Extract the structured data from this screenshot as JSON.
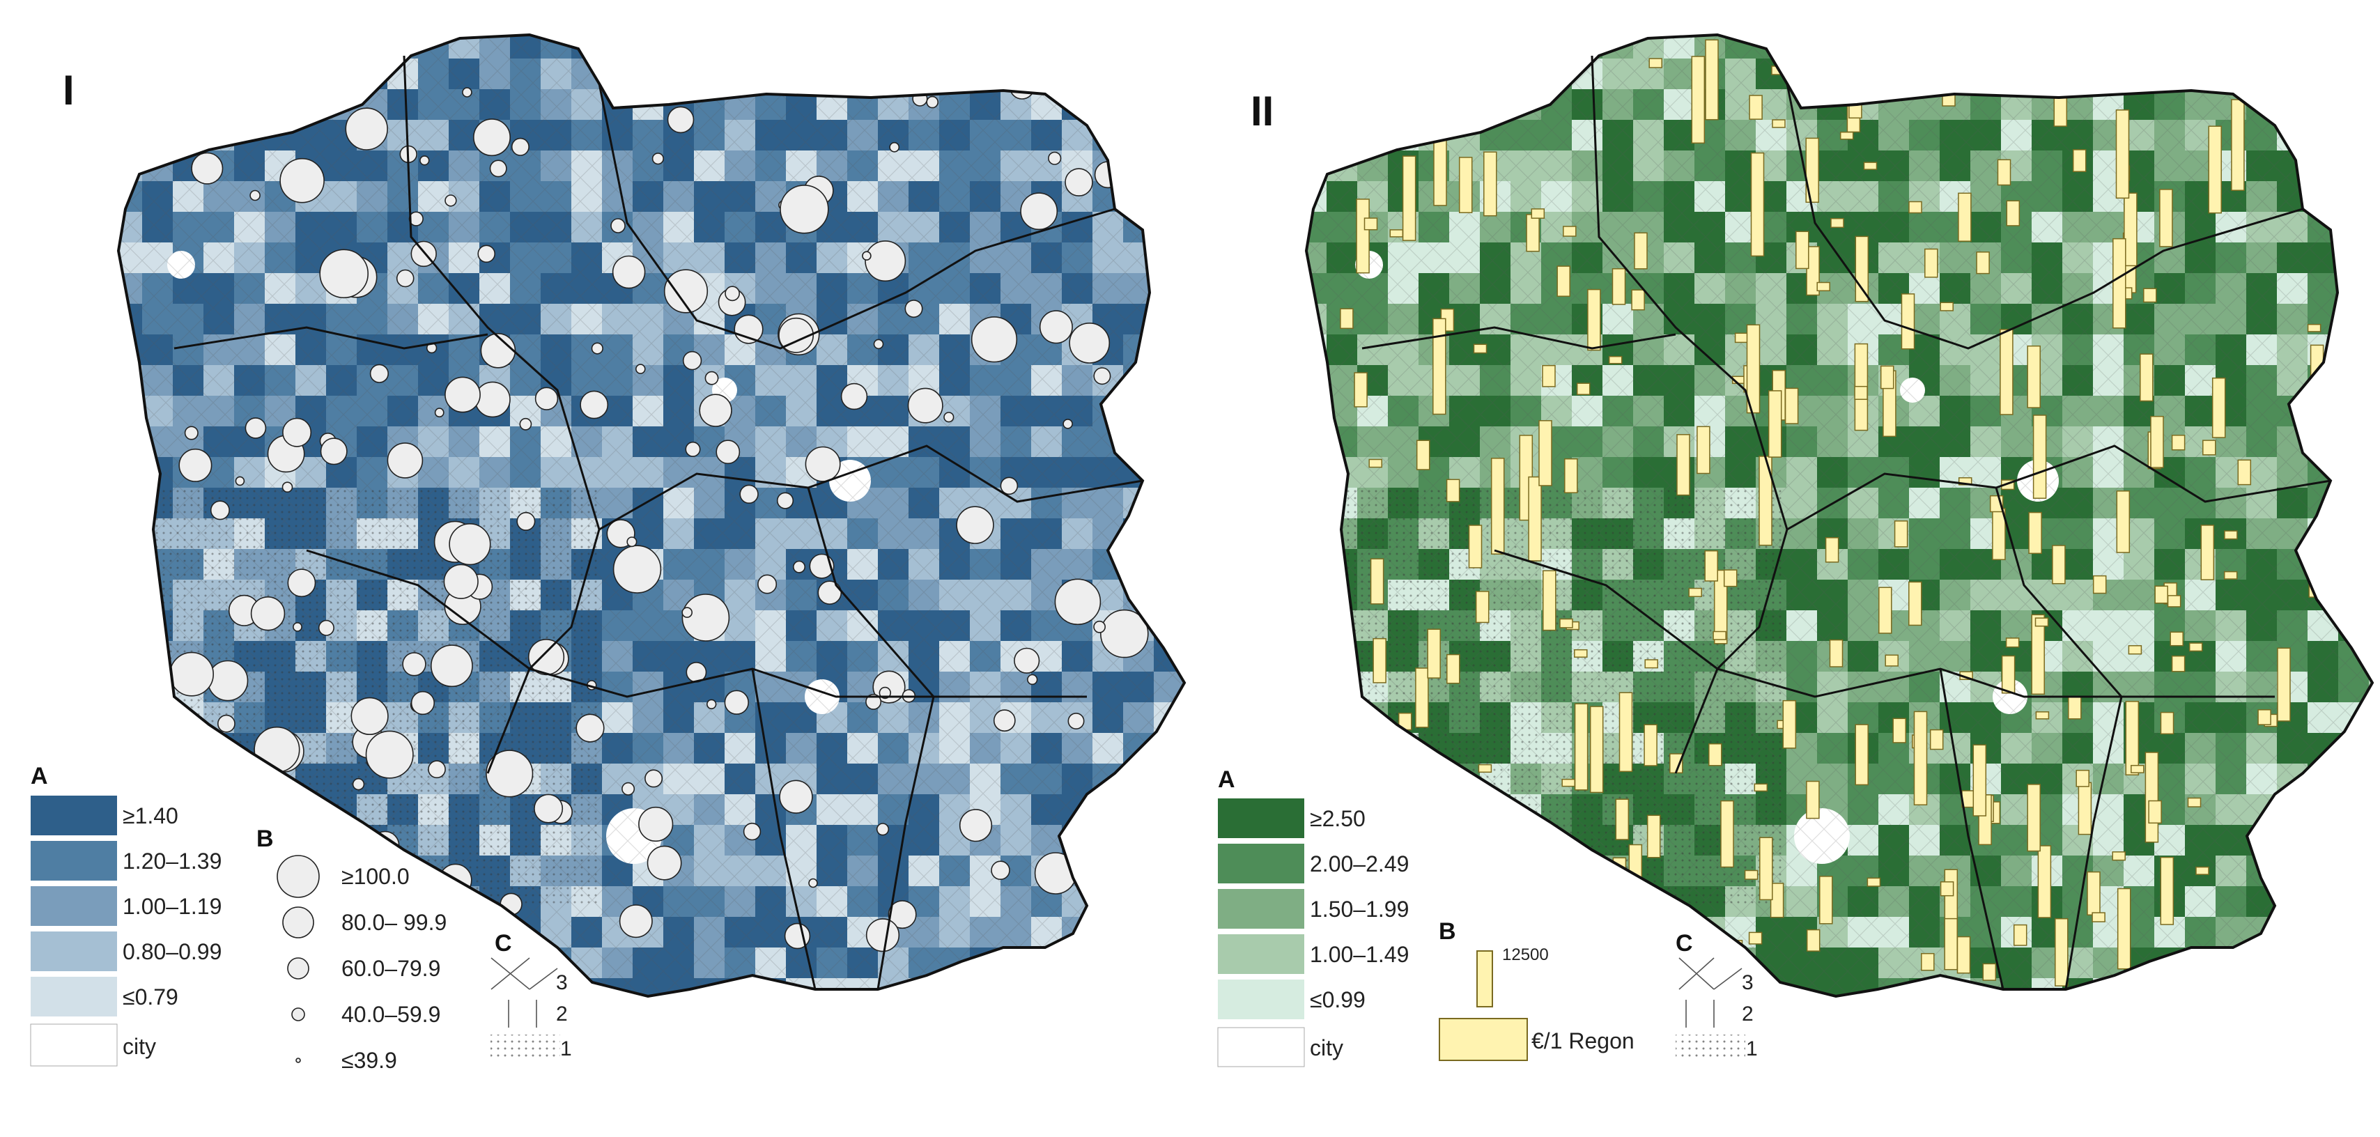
{
  "panels": [
    {
      "label": "I",
      "palette": [
        "#2e5f8a",
        "#4f7ea3",
        "#7a9dbb",
        "#a5bfd3",
        "#d2e0e8"
      ],
      "city_color": "#ffffff",
      "symbol_color": "#eeeeee",
      "legend_a": {
        "title": "A",
        "classes": [
          "≥1.40",
          "1.20–1.39",
          "1.00–1.19",
          "0.80–0.99",
          "≤0.79"
        ],
        "city": "city"
      },
      "legend_b": {
        "title": "B",
        "classes": [
          "≥100.0",
          "80.0– 99.9",
          "60.0–79.9",
          "40.0–59.9",
          "≤39.9"
        ]
      },
      "legend_c": {
        "title": "C",
        "classes": [
          "3",
          "2",
          "1"
        ]
      }
    },
    {
      "label": "II",
      "palette": [
        "#2a6e35",
        "#4e8d58",
        "#7fae84",
        "#a8cbac",
        "#d6ece0"
      ],
      "city_color": "#ffffff",
      "symbol_color": "#fff3b0",
      "legend_a": {
        "title": "A",
        "classes": [
          "≥2.50",
          "2.00–2.49",
          "1.50–1.99",
          "1.00–1.49",
          "≤0.99"
        ],
        "city": "city"
      },
      "legend_b": {
        "title": "B",
        "bar_value": "12500",
        "unit": "€/1 Regon"
      },
      "legend_c": {
        "title": "C",
        "classes": [
          "3",
          "2",
          "1"
        ]
      }
    }
  ]
}
